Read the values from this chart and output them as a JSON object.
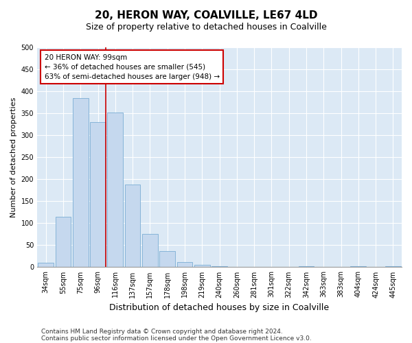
{
  "title_line1": "20, HERON WAY, COALVILLE, LE67 4LD",
  "title_line2": "Size of property relative to detached houses in Coalville",
  "xlabel": "Distribution of detached houses by size in Coalville",
  "ylabel": "Number of detached properties",
  "categories": [
    "34sqm",
    "55sqm",
    "75sqm",
    "96sqm",
    "116sqm",
    "137sqm",
    "157sqm",
    "178sqm",
    "198sqm",
    "219sqm",
    "240sqm",
    "260sqm",
    "281sqm",
    "301sqm",
    "322sqm",
    "342sqm",
    "363sqm",
    "383sqm",
    "404sqm",
    "424sqm",
    "445sqm"
  ],
  "values": [
    10,
    115,
    385,
    330,
    352,
    188,
    75,
    37,
    12,
    6,
    2,
    0,
    0,
    0,
    0,
    2,
    0,
    0,
    2,
    0,
    2
  ],
  "bar_color": "#c5d8ee",
  "bar_edge_color": "#7aadd4",
  "vline_color": "#cc0000",
  "annotation_text": "20 HERON WAY: 99sqm\n← 36% of detached houses are smaller (545)\n63% of semi-detached houses are larger (948) →",
  "annotation_box_color": "#ffffff",
  "annotation_box_edge_color": "#cc0000",
  "ylim": [
    0,
    500
  ],
  "yticks": [
    0,
    50,
    100,
    150,
    200,
    250,
    300,
    350,
    400,
    450,
    500
  ],
  "bg_color": "#dce9f5",
  "footer_line1": "Contains HM Land Registry data © Crown copyright and database right 2024.",
  "footer_line2": "Contains public sector information licensed under the Open Government Licence v3.0.",
  "title_fontsize": 11,
  "subtitle_fontsize": 9,
  "xlabel_fontsize": 9,
  "ylabel_fontsize": 8,
  "tick_fontsize": 7,
  "annotation_fontsize": 7.5,
  "footer_fontsize": 6.5
}
